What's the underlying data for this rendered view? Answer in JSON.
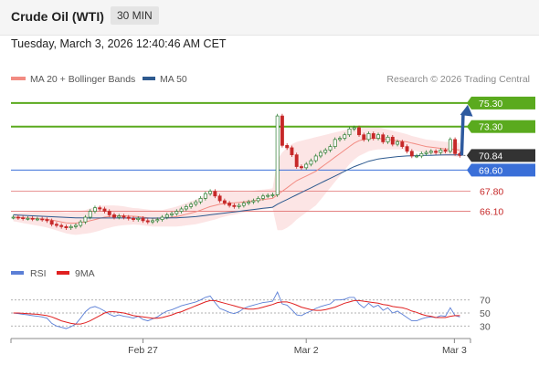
{
  "header": {
    "title": "Crude Oil (WTI)",
    "interval": "30 MIN",
    "timestamp": "Tuesday, March 3, 2026 12:40:46 AM CET"
  },
  "legend": {
    "items": [
      {
        "name": "MA 20 + Bollinger Bands",
        "color": "#f28b82"
      },
      {
        "name": "MA 50",
        "color": "#2e5a8f"
      }
    ],
    "credit": "Research © 2026 Trading Central"
  },
  "rsi_legend": {
    "items": [
      {
        "name": "RSI",
        "color": "#5b7fd6"
      },
      {
        "name": "9MA",
        "color": "#e02020"
      }
    ]
  },
  "colors": {
    "resistance": "#5aaa1e",
    "pivot": "#3a6fd8",
    "support": "#e07070",
    "current": "#333333",
    "arrow": "#2e5a9f",
    "bull_candle": "#2e7d32",
    "bear_candle": "#c62828"
  },
  "chart_data": [
    {
      "type": "candlestick",
      "x_ticks": [
        "Feb 27",
        "Mar 2",
        "Mar 3"
      ],
      "ylim": [
        62.5,
        76.3
      ],
      "levels": [
        {
          "value": 75.3,
          "label": "75.30",
          "kind": "resistance"
        },
        {
          "value": 73.3,
          "label": "73.30",
          "kind": "resistance"
        },
        {
          "value": 70.84,
          "label": "70.84",
          "kind": "current"
        },
        {
          "value": 69.6,
          "label": "69.60",
          "kind": "pivot"
        },
        {
          "value": 67.8,
          "label": "67.80",
          "kind": "support"
        },
        {
          "value": 66.1,
          "label": "66.10",
          "kind": "support"
        }
      ],
      "arrow": {
        "from": 70.84,
        "to": 75.3,
        "direction": "up"
      },
      "close": [
        65.6,
        65.55,
        65.5,
        65.5,
        65.45,
        65.45,
        65.4,
        65.3,
        65.0,
        64.9,
        64.8,
        64.7,
        64.8,
        64.9,
        65.2,
        65.6,
        66.1,
        66.4,
        66.3,
        66.1,
        65.8,
        65.6,
        65.7,
        65.6,
        65.5,
        65.4,
        65.5,
        65.3,
        65.2,
        65.3,
        65.4,
        65.6,
        65.8,
        65.9,
        66.1,
        66.3,
        66.5,
        66.7,
        66.9,
        67.2,
        67.6,
        67.8,
        67.4,
        67.0,
        66.8,
        66.6,
        66.5,
        66.6,
        66.8,
        66.9,
        67.0,
        67.2,
        67.4,
        67.45,
        67.5,
        74.2,
        71.7,
        71.5,
        70.9,
        69.9,
        69.8,
        70.1,
        70.4,
        70.8,
        71.1,
        71.3,
        71.6,
        72.2,
        72.3,
        72.6,
        73.1,
        73.2,
        72.6,
        72.2,
        72.7,
        72.3,
        72.6,
        72.0,
        72.4,
        71.8,
        72.0,
        71.6,
        71.2,
        70.8,
        70.8,
        71.0,
        71.1,
        71.2,
        71.1,
        71.3,
        71.2,
        72.2,
        71.0,
        70.84
      ],
      "ma20": [
        65.6,
        65.58,
        65.55,
        65.53,
        65.5,
        65.48,
        65.45,
        65.42,
        65.35,
        65.28,
        65.2,
        65.12,
        65.1,
        65.1,
        65.15,
        65.2,
        65.3,
        65.4,
        65.5,
        65.6,
        65.65,
        65.7,
        65.72,
        65.72,
        65.7,
        65.68,
        65.65,
        65.6,
        65.55,
        65.5,
        65.5,
        65.5,
        65.55,
        65.6,
        65.65,
        65.75,
        65.85,
        65.95,
        66.05,
        66.2,
        66.35,
        66.5,
        66.6,
        66.7,
        66.75,
        66.8,
        66.82,
        66.85,
        66.9,
        66.95,
        67.0,
        67.05,
        67.1,
        67.15,
        67.2,
        67.5,
        67.8,
        68.1,
        68.4,
        68.7,
        68.9,
        69.1,
        69.3,
        69.5,
        69.8,
        70.1,
        70.4,
        70.7,
        71.0,
        71.3,
        71.6,
        71.9,
        72.1,
        72.2,
        72.3,
        72.3,
        72.3,
        72.25,
        72.2,
        72.15,
        72.1,
        72.05,
        72.0,
        71.9,
        71.8,
        71.7,
        71.6,
        71.55,
        71.5,
        71.45,
        71.4,
        71.4,
        71.35,
        71.3
      ],
      "ma50": [
        65.8,
        65.78,
        65.76,
        65.74,
        65.72,
        65.7,
        65.68,
        65.66,
        65.64,
        65.62,
        65.6,
        65.58,
        65.56,
        65.55,
        65.54,
        65.53,
        65.53,
        65.53,
        65.53,
        65.53,
        65.53,
        65.53,
        65.53,
        65.53,
        65.52,
        65.52,
        65.52,
        65.52,
        65.52,
        65.52,
        65.52,
        65.52,
        65.53,
        65.54,
        65.55,
        65.57,
        65.59,
        65.62,
        65.65,
        65.7,
        65.75,
        65.8,
        65.85,
        65.9,
        65.95,
        66.0,
        66.05,
        66.1,
        66.15,
        66.2,
        66.25,
        66.3,
        66.35,
        66.4,
        66.45,
        66.7,
        66.9,
        67.1,
        67.3,
        67.5,
        67.7,
        67.9,
        68.1,
        68.3,
        68.5,
        68.7,
        68.9,
        69.1,
        69.3,
        69.5,
        69.7,
        69.9,
        70.05,
        70.2,
        70.35,
        70.45,
        70.55,
        70.6,
        70.65,
        70.7,
        70.75,
        70.78,
        70.8,
        70.82,
        70.83,
        70.84,
        70.85,
        70.86,
        70.87,
        70.88,
        70.89,
        70.9,
        70.9,
        70.9
      ],
      "band_width": [
        0.35,
        0.4,
        0.45,
        0.5,
        0.55,
        0.6,
        0.65,
        0.7,
        0.75,
        0.8,
        0.85,
        0.9,
        0.95,
        1.0,
        1.0,
        1.0,
        1.05,
        1.05,
        1.05,
        1.0,
        0.95,
        0.9,
        0.85,
        0.8,
        0.75,
        0.7,
        0.7,
        0.7,
        0.7,
        0.7,
        0.7,
        0.7,
        0.75,
        0.8,
        0.85,
        0.9,
        0.95,
        1.0,
        1.05,
        1.1,
        1.15,
        1.2,
        1.2,
        1.15,
        1.1,
        1.05,
        1.0,
        0.95,
        0.9,
        0.85,
        0.85,
        0.85,
        0.85,
        0.85,
        0.85,
        3.0,
        3.3,
        3.4,
        3.4,
        3.3,
        3.2,
        3.1,
        3.0,
        2.9,
        2.7,
        2.5,
        2.3,
        2.1,
        1.9,
        1.7,
        1.5,
        1.4,
        1.3,
        1.2,
        1.1,
        1.0,
        0.95,
        0.9,
        0.85,
        0.8,
        0.75,
        0.7,
        0.65,
        0.6,
        0.6,
        0.6,
        0.6,
        0.6,
        0.6,
        0.6,
        0.6,
        0.6,
        0.6,
        0.6
      ]
    },
    {
      "type": "line",
      "name": "RSI",
      "y_ticks": [
        70,
        50,
        30
      ],
      "ylim": [
        15,
        85
      ],
      "rsi": [
        50,
        49,
        48,
        47,
        46,
        45,
        44,
        42,
        34,
        30,
        28,
        26,
        29,
        33,
        42,
        52,
        58,
        60,
        57,
        53,
        48,
        45,
        47,
        45,
        44,
        42,
        45,
        40,
        38,
        41,
        44,
        49,
        53,
        55,
        58,
        61,
        63,
        65,
        67,
        70,
        74,
        76,
        66,
        57,
        54,
        51,
        49,
        52,
        57,
        60,
        62,
        64,
        66,
        67,
        68,
        82,
        64,
        62,
        55,
        47,
        46,
        50,
        53,
        57,
        60,
        62,
        64,
        70,
        70,
        71,
        74,
        74,
        64,
        58,
        65,
        59,
        62,
        54,
        58,
        50,
        53,
        48,
        43,
        38,
        38,
        41,
        43,
        44,
        43,
        46,
        45,
        58,
        46,
        44
      ],
      "ma9": [
        50,
        50,
        49.5,
        49,
        48.5,
        48,
        47,
        46,
        44,
        41,
        38,
        36,
        34,
        33,
        33,
        35,
        38,
        42,
        46,
        50,
        52,
        52,
        51,
        50,
        48,
        46,
        45,
        44,
        43,
        42,
        42,
        43,
        45,
        47,
        50,
        52,
        55,
        58,
        61,
        64,
        67,
        69,
        69,
        67,
        65,
        63,
        61,
        59,
        57,
        56,
        56,
        57,
        59,
        61,
        63,
        66,
        67,
        67,
        65,
        62,
        59,
        57,
        55,
        54,
        54,
        55,
        57,
        59,
        62,
        65,
        67,
        69,
        69,
        68,
        67,
        66,
        65,
        63,
        62,
        60,
        59,
        58,
        56,
        53,
        51,
        48,
        46,
        45,
        43,
        43,
        43,
        45,
        46,
        46
      ]
    }
  ]
}
